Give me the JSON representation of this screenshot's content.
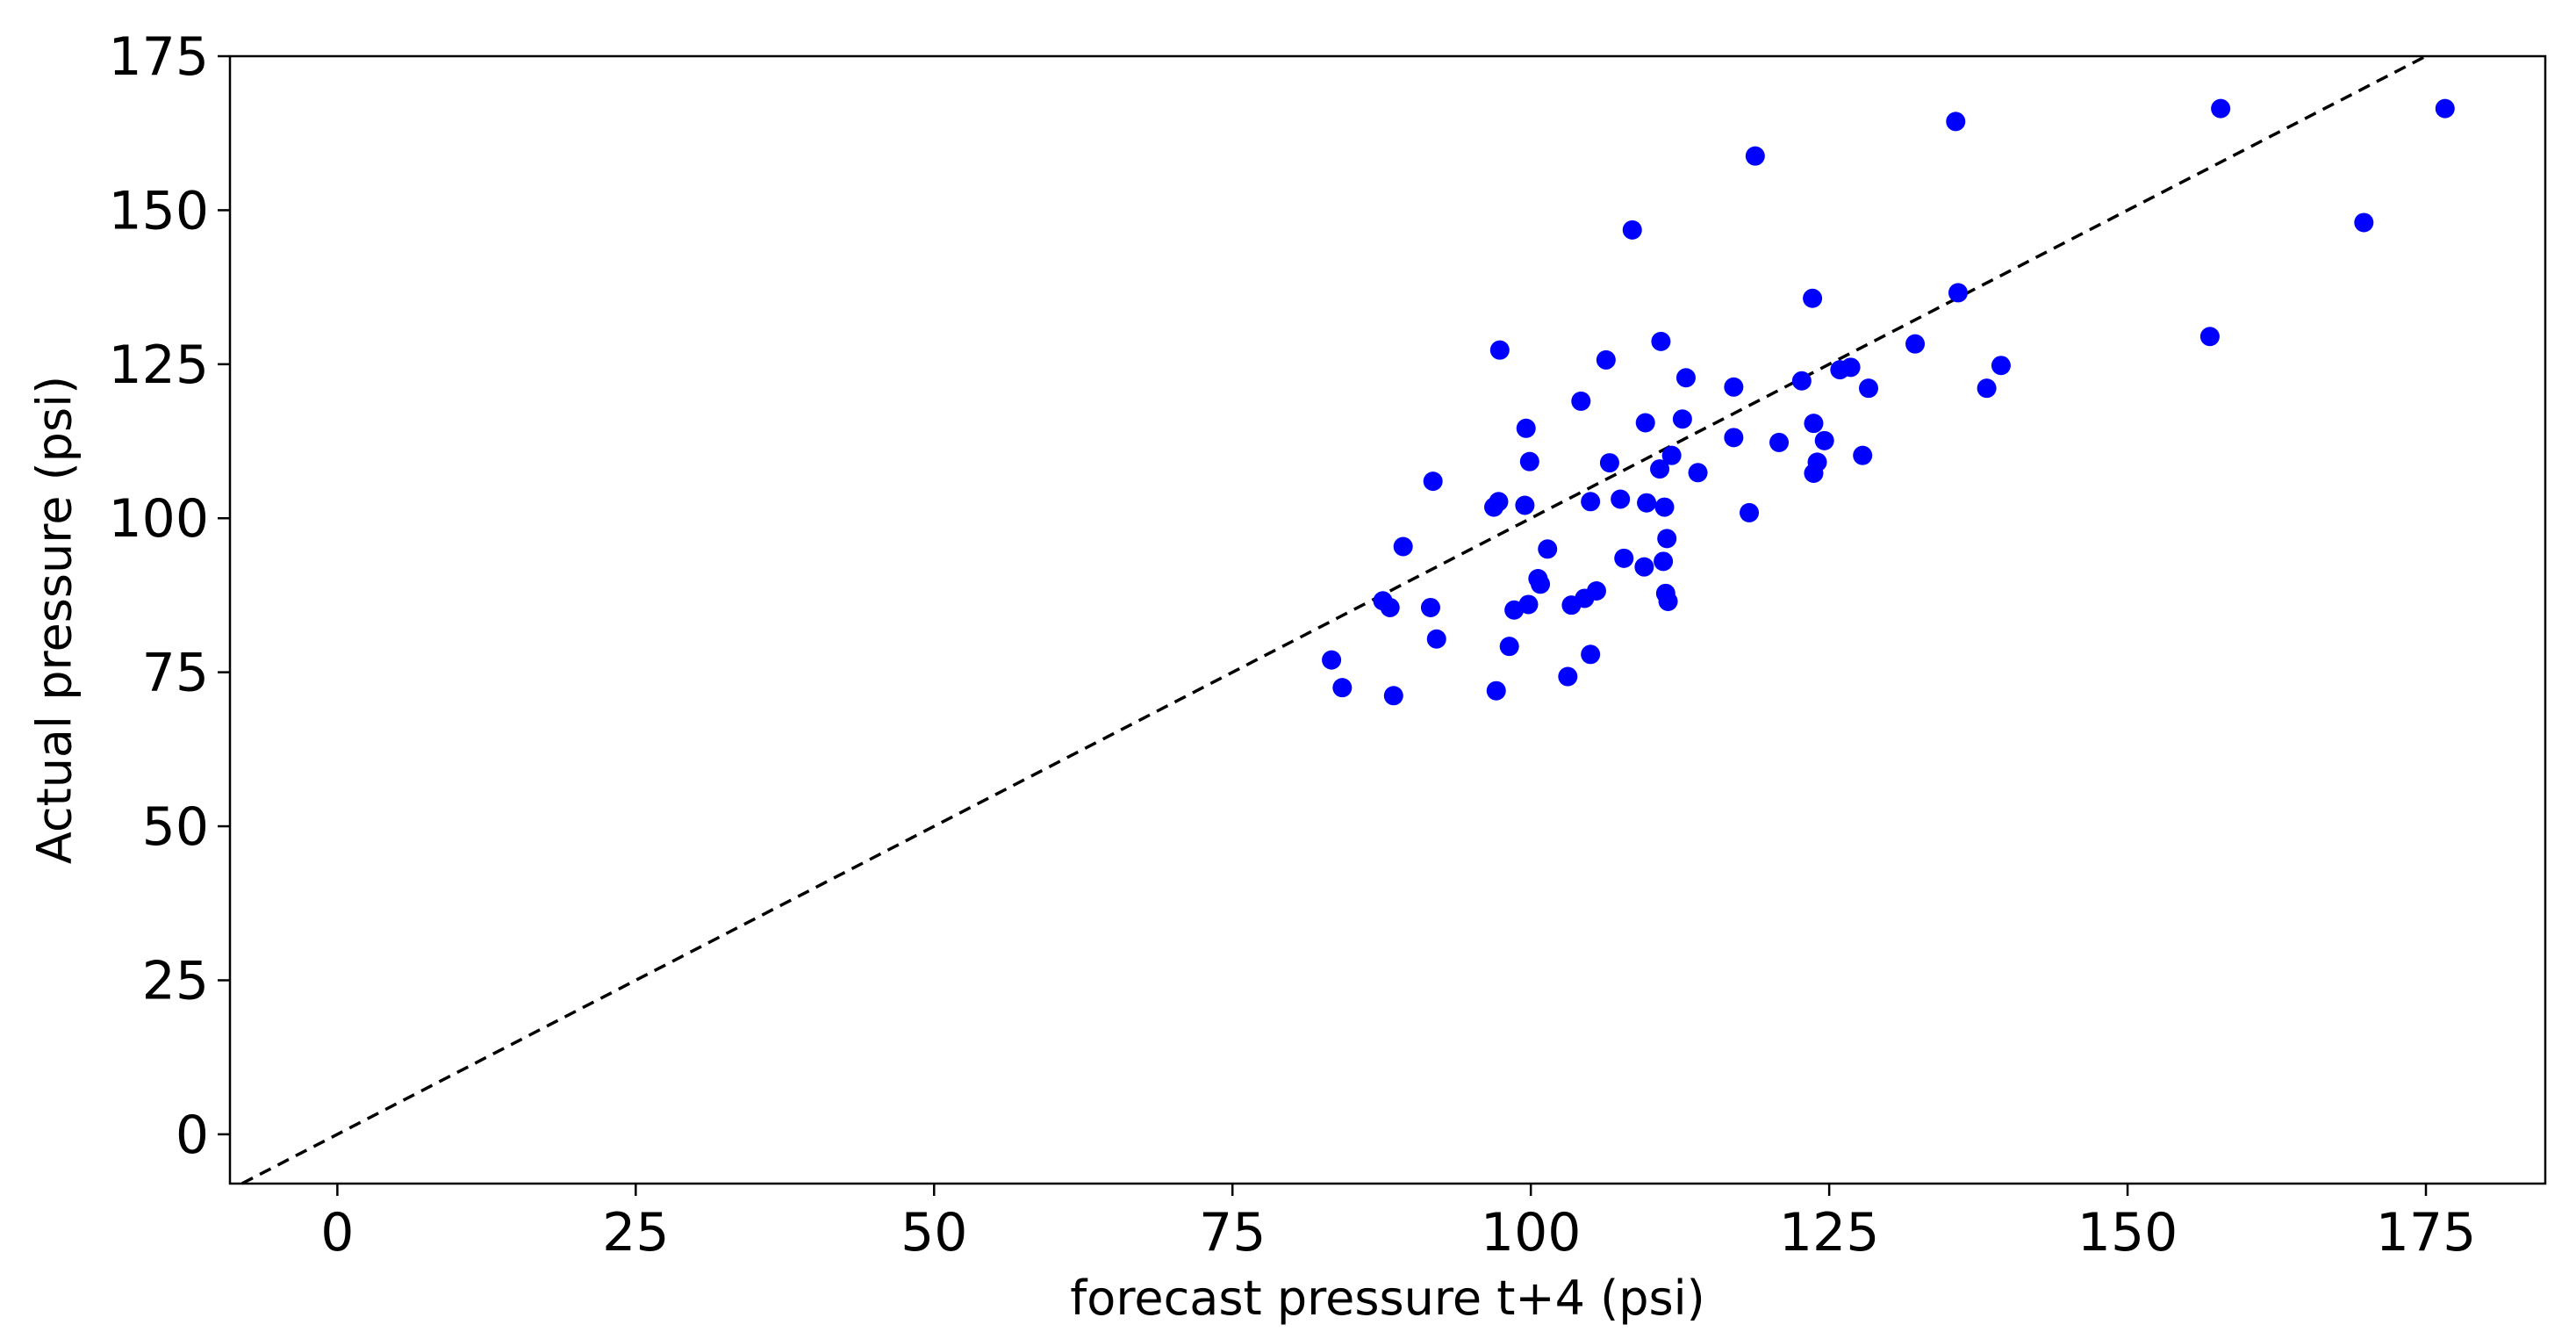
{
  "chart_data": {
    "type": "scatter",
    "title": "",
    "xlabel": "forecast pressure t+4 (psi)",
    "ylabel": "Actual pressure (psi)",
    "xlim": [
      -9,
      185
    ],
    "ylim": [
      -8,
      175
    ],
    "xticks": [
      0,
      25,
      50,
      75,
      100,
      125,
      150,
      175
    ],
    "yticks": [
      0,
      25,
      50,
      75,
      100,
      125,
      150,
      175
    ],
    "grid": false,
    "reference_line": {
      "style": "dashed",
      "color": "#000000",
      "slope": 1,
      "intercept": 0
    },
    "series": [
      {
        "color": "#0000ff",
        "points": [
          [
            83.3,
            77.0
          ],
          [
            84.2,
            72.5
          ],
          [
            87.6,
            86.6
          ],
          [
            88.2,
            85.5
          ],
          [
            88.5,
            71.2
          ],
          [
            89.3,
            95.4
          ],
          [
            91.6,
            85.5
          ],
          [
            91.8,
            106.0
          ],
          [
            92.1,
            80.4
          ],
          [
            96.9,
            101.8
          ],
          [
            97.1,
            72.0
          ],
          [
            97.3,
            102.7
          ],
          [
            97.4,
            127.3
          ],
          [
            98.2,
            79.2
          ],
          [
            98.6,
            85.1
          ],
          [
            99.5,
            102.1
          ],
          [
            99.6,
            114.6
          ],
          [
            99.8,
            86.0
          ],
          [
            99.9,
            109.2
          ],
          [
            100.6,
            90.2
          ],
          [
            100.8,
            89.3
          ],
          [
            101.4,
            95.0
          ],
          [
            103.1,
            74.3
          ],
          [
            103.4,
            85.9
          ],
          [
            104.2,
            119.0
          ],
          [
            104.5,
            87.0
          ],
          [
            105.0,
            102.7
          ],
          [
            105.0,
            77.9
          ],
          [
            105.5,
            88.2
          ],
          [
            106.3,
            125.7
          ],
          [
            106.6,
            109.0
          ],
          [
            107.5,
            103.1
          ],
          [
            107.8,
            93.5
          ],
          [
            108.5,
            146.8
          ],
          [
            109.5,
            92.1
          ],
          [
            109.6,
            115.5
          ],
          [
            109.7,
            102.5
          ],
          [
            110.8,
            108.0
          ],
          [
            110.9,
            128.7
          ],
          [
            111.1,
            93.0
          ],
          [
            111.2,
            101.8
          ],
          [
            111.3,
            87.8
          ],
          [
            111.4,
            96.7
          ],
          [
            111.5,
            86.5
          ],
          [
            111.8,
            110.2
          ],
          [
            112.7,
            116.1
          ],
          [
            113.0,
            122.8
          ],
          [
            114.0,
            107.4
          ],
          [
            117.0,
            121.3
          ],
          [
            117.0,
            113.1
          ],
          [
            118.3,
            100.9
          ],
          [
            118.8,
            158.8
          ],
          [
            120.8,
            112.3
          ],
          [
            122.7,
            122.3
          ],
          [
            123.6,
            135.7
          ],
          [
            123.7,
            115.4
          ],
          [
            123.7,
            107.3
          ],
          [
            124.0,
            109.1
          ],
          [
            124.6,
            112.6
          ],
          [
            125.9,
            124.1
          ],
          [
            126.8,
            124.5
          ],
          [
            127.8,
            110.2
          ],
          [
            128.3,
            121.1
          ],
          [
            132.2,
            128.3
          ],
          [
            135.6,
            164.4
          ],
          [
            135.8,
            136.6
          ],
          [
            138.2,
            121.1
          ],
          [
            139.4,
            124.8
          ],
          [
            156.9,
            129.5
          ],
          [
            157.8,
            166.5
          ],
          [
            169.8,
            148.0
          ],
          [
            176.6,
            166.5
          ]
        ]
      }
    ]
  }
}
